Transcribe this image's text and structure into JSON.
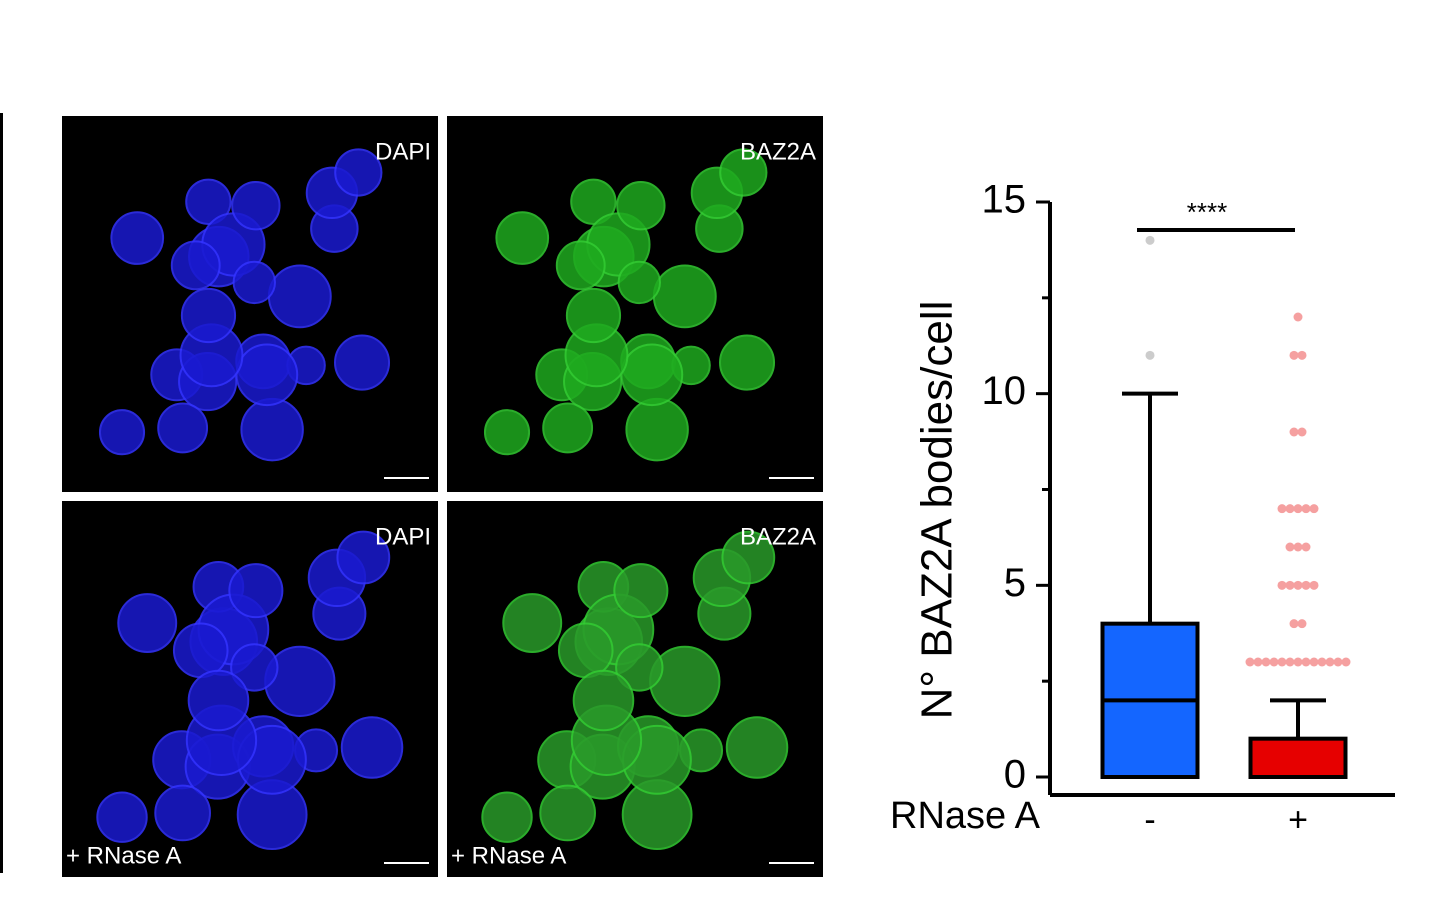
{
  "panels": [
    {
      "label": "DAPI"
    },
    {
      "label": "BAZ2A"
    },
    {
      "label": "DAPI",
      "treatment": "+ RNase A"
    },
    {
      "label": "BAZ2A",
      "treatment": "+ RNase A"
    }
  ],
  "chart_data": {
    "type": "box",
    "ylabel": "N° BAZ2A bodies/cell",
    "xlabel": "RNase A",
    "categories": [
      "-",
      "+"
    ],
    "boxes": [
      {
        "color": "#1466ff",
        "min": 0,
        "q1": 0,
        "median": 2,
        "q3": 4,
        "max": 10,
        "outliers": [
          11,
          14
        ],
        "outlier_color": "#cccccc"
      },
      {
        "color": "#e60000",
        "min": 0,
        "q1": 0,
        "median": 0,
        "q3": 1,
        "max": 2,
        "outliers": [
          3,
          3,
          3,
          3,
          3,
          3,
          3,
          3,
          3,
          3,
          3,
          3,
          3,
          4,
          4,
          5,
          5,
          5,
          5,
          5,
          6,
          6,
          6,
          7,
          7,
          7,
          7,
          7,
          9,
          9,
          11,
          11,
          12
        ],
        "outlier_color": "#f5a0a0"
      }
    ],
    "significance": "****",
    "ylim": [
      0,
      15
    ],
    "yticks": [
      0,
      5,
      10,
      15
    ],
    "yminorticks": [
      2.5,
      7.5,
      12.5
    ]
  }
}
